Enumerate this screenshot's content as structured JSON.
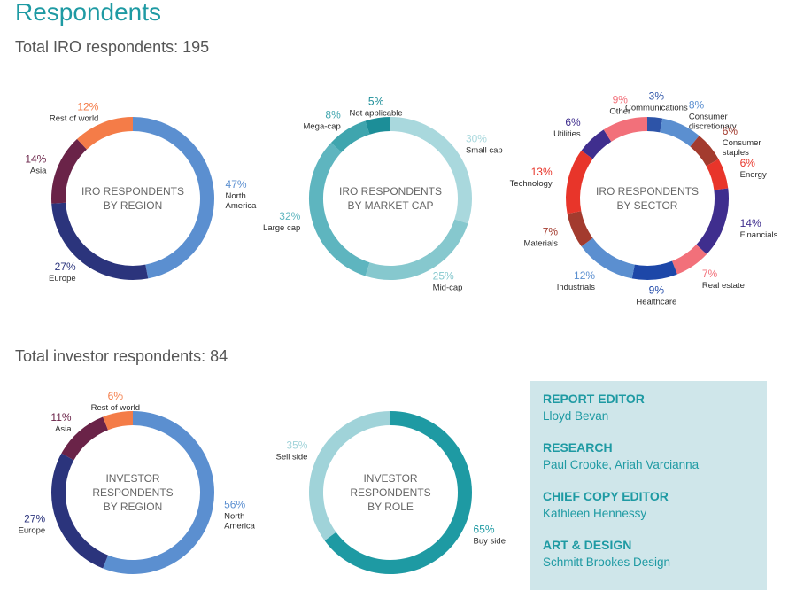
{
  "page": {
    "title": "Respondents",
    "iro_heading": "Total IRO respondents: 195",
    "investor_heading": "Total investor respondents: 84"
  },
  "credits": [
    {
      "role": "REPORT EDITOR",
      "name": "Lloyd Bevan"
    },
    {
      "role": "RESEARCH",
      "name": "Paul Crooke, Ariah Varcianna"
    },
    {
      "role": "CHIEF COPY EDITOR",
      "name": "Kathleen Hennessy"
    },
    {
      "role": "ART & DESIGN",
      "name": "Schmitt Brookes Design"
    }
  ],
  "chart_data": [
    {
      "type": "pie",
      "id": "iro-region",
      "title": "IRO RESPONDENTS\nBY REGION",
      "slices": [
        {
          "label": "North\nAmerica",
          "pct_label": "47%",
          "value": 47,
          "color": "#5b8fd0"
        },
        {
          "label": "Europe",
          "pct_label": "27%",
          "value": 27,
          "color": "#2b347c"
        },
        {
          "label": "Asia",
          "pct_label": "14%",
          "value": 14,
          "color": "#6a2348"
        },
        {
          "label": "Rest of world",
          "pct_label": "12%",
          "value": 12,
          "color": "#f47c48"
        }
      ]
    },
    {
      "type": "pie",
      "id": "iro-marketcap",
      "title": "IRO RESPONDENTS\nBY MARKET CAP",
      "slices": [
        {
          "label": "Small cap",
          "pct_label": "30%",
          "value": 30,
          "color": "#a9d8dd"
        },
        {
          "label": "Mid-cap",
          "pct_label": "25%",
          "value": 25,
          "color": "#86c8ce"
        },
        {
          "label": "Large cap",
          "pct_label": "32%",
          "value": 32,
          "color": "#5eb5bf"
        },
        {
          "label": "Mega-cap",
          "pct_label": "8%",
          "value": 8,
          "color": "#3fa5ae"
        },
        {
          "label": "Not applicable",
          "pct_label": "5%",
          "value": 5,
          "color": "#1c8e98"
        }
      ]
    },
    {
      "type": "pie",
      "id": "iro-sector",
      "title": "IRO RESPONDENTS\nBY SECTOR",
      "slices": [
        {
          "label": "Communications",
          "pct_label": "3%",
          "value": 3,
          "color": "#2d54a8"
        },
        {
          "label": "Consumer\ndiscretionary",
          "pct_label": "8%",
          "value": 8,
          "color": "#5b8fd0"
        },
        {
          "label": "Consumer\nstaples",
          "pct_label": "6%",
          "value": 6,
          "color": "#a33b2e"
        },
        {
          "label": "Energy",
          "pct_label": "6%",
          "value": 6,
          "color": "#e8352a"
        },
        {
          "label": "Financials",
          "pct_label": "14%",
          "value": 14,
          "color": "#3f2e8e"
        },
        {
          "label": "Real estate",
          "pct_label": "7%",
          "value": 7,
          "color": "#f2707a"
        },
        {
          "label": "Healthcare",
          "pct_label": "9%",
          "value": 9,
          "color": "#1d47a8"
        },
        {
          "label": "Industrials",
          "pct_label": "12%",
          "value": 12,
          "color": "#5b8fd0"
        },
        {
          "label": "Materials",
          "pct_label": "7%",
          "value": 7,
          "color": "#a33b2e"
        },
        {
          "label": "Technology",
          "pct_label": "13%",
          "value": 13,
          "color": "#e8352a"
        },
        {
          "label": "Utilities",
          "pct_label": "6%",
          "value": 6,
          "color": "#3f2e8e"
        },
        {
          "label": "Other",
          "pct_label": "9%",
          "value": 9,
          "color": "#f2707a"
        }
      ]
    },
    {
      "type": "pie",
      "id": "inv-region",
      "title": "INVESTOR\nRESPONDENTS\nBY REGION",
      "slices": [
        {
          "label": "North\nAmerica",
          "pct_label": "56%",
          "value": 56,
          "color": "#5b8fd0"
        },
        {
          "label": "Europe",
          "pct_label": "27%",
          "value": 27,
          "color": "#2b347c"
        },
        {
          "label": "Asia",
          "pct_label": "11%",
          "value": 11,
          "color": "#6a2348"
        },
        {
          "label": "Rest of world",
          "pct_label": "6%",
          "value": 6,
          "color": "#f47c48"
        }
      ]
    },
    {
      "type": "pie",
      "id": "inv-role",
      "title": "INVESTOR\nRESPONDENTS\nBY ROLE",
      "slices": [
        {
          "label": "Buy side",
          "pct_label": "65%",
          "value": 65,
          "color": "#1e9aa3"
        },
        {
          "label": "Sell side",
          "pct_label": "35%",
          "value": 35,
          "color": "#a0d3d9"
        }
      ]
    }
  ]
}
